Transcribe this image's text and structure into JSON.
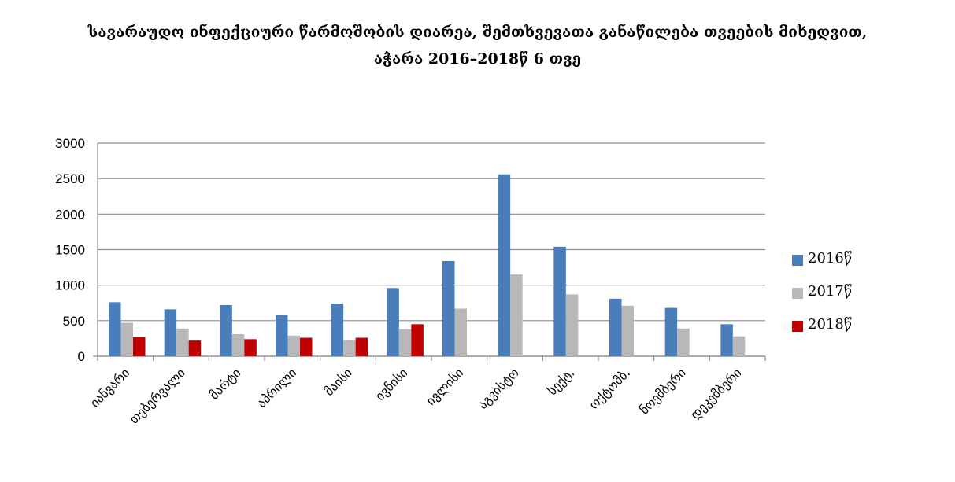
{
  "title_line1": "სავარაუდო ინფექციური წარმოშობის დიარეა, შემთხვევათა განაწილება თვეების მიხედვით,",
  "title_line2": "აჭარა 2016–2018წ 6 თვე",
  "chart_data": {
    "type": "bar",
    "categories": [
      "იანვარი",
      "თებერვალი",
      "მარტი",
      "აპრილი",
      "მაისი",
      "ივნისი",
      "ივლისი",
      "აგვისტო",
      "სექტ.",
      "ოქტომბ.",
      "ნოემბერი",
      "დეკემბერი"
    ],
    "series": [
      {
        "name": "2016წ",
        "color": "#4a7ebb",
        "values": [
          760,
          660,
          720,
          580,
          740,
          960,
          1340,
          2560,
          1540,
          810,
          680,
          450
        ]
      },
      {
        "name": "2017წ",
        "color": "#b8b8b8",
        "values": [
          470,
          390,
          310,
          290,
          230,
          380,
          670,
          1150,
          870,
          710,
          390,
          280
        ]
      },
      {
        "name": "2018წ",
        "color": "#c00000",
        "values": [
          270,
          220,
          240,
          260,
          260,
          450,
          null,
          null,
          null,
          null,
          null,
          null
        ]
      }
    ],
    "yticks": [
      0,
      500,
      1000,
      1500,
      2000,
      2500,
      3000
    ],
    "ylim": [
      0,
      3000
    ],
    "grid": true,
    "legend_position": "right"
  }
}
